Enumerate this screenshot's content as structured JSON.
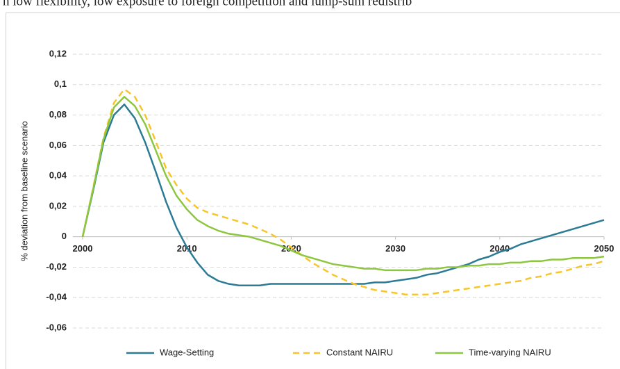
{
  "caption": "h low flexibility, low exposure to foreign competition and lump-sum redistrib",
  "chart_data": {
    "type": "line",
    "ylabel": "% deviation from baseline scenario",
    "x": [
      2000,
      2001,
      2002,
      2003,
      2004,
      2005,
      2006,
      2007,
      2008,
      2009,
      2010,
      2011,
      2012,
      2013,
      2014,
      2015,
      2016,
      2017,
      2018,
      2019,
      2020,
      2021,
      2022,
      2023,
      2024,
      2025,
      2026,
      2027,
      2028,
      2029,
      2030,
      2031,
      2032,
      2033,
      2034,
      2035,
      2036,
      2037,
      2038,
      2039,
      2040,
      2041,
      2042,
      2043,
      2044,
      2045,
      2046,
      2047,
      2048,
      2049,
      2050
    ],
    "series": [
      {
        "name": "Wage-Setting",
        "color": "#2c7b95",
        "dash": false,
        "values": [
          0,
          0.03,
          0.062,
          0.08,
          0.087,
          0.078,
          0.062,
          0.043,
          0.023,
          0.006,
          -0.007,
          -0.017,
          -0.025,
          -0.029,
          -0.031,
          -0.032,
          -0.032,
          -0.032,
          -0.031,
          -0.031,
          -0.031,
          -0.031,
          -0.031,
          -0.031,
          -0.031,
          -0.031,
          -0.031,
          -0.031,
          -0.03,
          -0.03,
          -0.029,
          -0.028,
          -0.027,
          -0.025,
          -0.024,
          -0.022,
          -0.02,
          -0.018,
          -0.015,
          -0.013,
          -0.01,
          -0.008,
          -0.005,
          -0.003,
          -0.001,
          0.001,
          0.003,
          0.005,
          0.007,
          0.009,
          0.011
        ]
      },
      {
        "name": "Constant NAIRU",
        "color": "#f7c52a",
        "dash": true,
        "values": [
          0,
          0.032,
          0.065,
          0.088,
          0.097,
          0.092,
          0.08,
          0.063,
          0.045,
          0.034,
          0.025,
          0.019,
          0.016,
          0.014,
          0.012,
          0.01,
          0.008,
          0.005,
          0.002,
          -0.002,
          -0.007,
          -0.012,
          -0.017,
          -0.021,
          -0.025,
          -0.028,
          -0.031,
          -0.033,
          -0.035,
          -0.036,
          -0.037,
          -0.038,
          -0.038,
          -0.038,
          -0.037,
          -0.036,
          -0.035,
          -0.034,
          -0.033,
          -0.032,
          -0.031,
          -0.03,
          -0.029,
          -0.027,
          -0.026,
          -0.024,
          -0.023,
          -0.021,
          -0.019,
          -0.018,
          -0.016
        ]
      },
      {
        "name": "Time-varying NAIRU",
        "color": "#8dc63f",
        "dash": false,
        "values": [
          0,
          0.031,
          0.064,
          0.085,
          0.092,
          0.086,
          0.074,
          0.057,
          0.04,
          0.027,
          0.018,
          0.011,
          0.007,
          0.004,
          0.002,
          0.001,
          0,
          -0.002,
          -0.004,
          -0.006,
          -0.009,
          -0.012,
          -0.014,
          -0.016,
          -0.018,
          -0.019,
          -0.02,
          -0.021,
          -0.021,
          -0.022,
          -0.022,
          -0.022,
          -0.022,
          -0.021,
          -0.021,
          -0.02,
          -0.02,
          -0.019,
          -0.019,
          -0.018,
          -0.018,
          -0.017,
          -0.017,
          -0.016,
          -0.016,
          -0.015,
          -0.015,
          -0.014,
          -0.014,
          -0.014,
          -0.013
        ]
      }
    ],
    "xlim": [
      2000,
      2050
    ],
    "xticks": [
      2000,
      2010,
      2020,
      2030,
      2040,
      2050
    ],
    "ylim": [
      -0.06,
      0.12
    ],
    "yticks": [
      {
        "value": -0.06,
        "label": "-0,06"
      },
      {
        "value": -0.04,
        "label": "-0,04"
      },
      {
        "value": -0.02,
        "label": "-0,02"
      },
      {
        "value": 0,
        "label": "0"
      },
      {
        "value": 0.02,
        "label": "0,02"
      },
      {
        "value": 0.04,
        "label": "0,04"
      },
      {
        "value": 0.06,
        "label": "0,06"
      },
      {
        "value": 0.08,
        "label": "0,08"
      },
      {
        "value": 0.1,
        "label": "0,1"
      },
      {
        "value": 0.12,
        "label": "0,12"
      }
    ],
    "grid": true,
    "legend": "bottom"
  }
}
